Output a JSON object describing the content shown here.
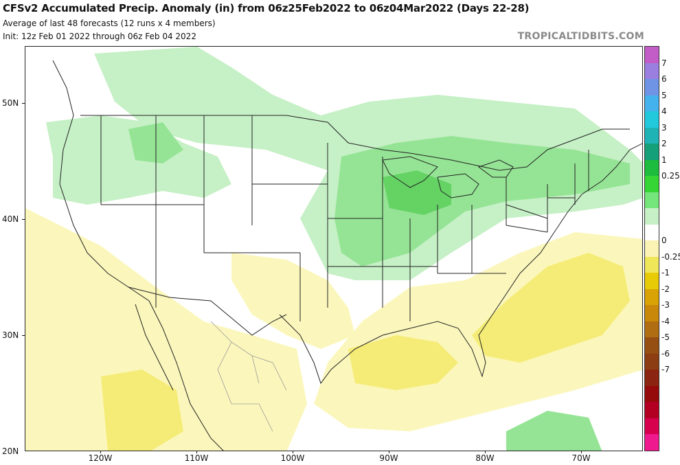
{
  "header": {
    "title": "CFSv2 Accumulated Precip. Anomaly (in) from 06z25Feb2022 to 06z04Mar2022 (Days 22-28)",
    "subtitle1": "Average of last 48 forecasts (12 runs x 4 members)",
    "subtitle2": "Init: 12z Feb 01 2022 through 06z Feb 04 2022",
    "credit": "TROPICALTIDBITS.COM"
  },
  "map": {
    "lat_labels": [
      "50N",
      "40N",
      "30N",
      "20N"
    ],
    "lon_labels": [
      "120W",
      "110W",
      "100W",
      "90W",
      "80W",
      "70W"
    ],
    "colors": {
      "wet_light": "#c6f0c6",
      "wet_mid": "#95e495",
      "wet_high": "#64d364",
      "dry_light": "#fbf7bc",
      "dry_mid": "#f5ec77",
      "land_line": "#222222",
      "mexico_state_line": "#999999"
    }
  },
  "colorbar": {
    "labels": [
      "7",
      "6",
      "5",
      "4",
      "3",
      "2",
      "1",
      "0.25",
      "0",
      "-0.25",
      "-1",
      "-2",
      "-3",
      "-4",
      "-5",
      "-6",
      "-7"
    ],
    "colors": [
      "#c25dc8",
      "#9a7fe0",
      "#6f94e6",
      "#44b2ec",
      "#22c9dd",
      "#1fb3b6",
      "#15a07a",
      "#1dbb3e",
      "#35d535",
      "#74e57a",
      "#c7f0c7",
      "#ffffff",
      "#fbf3b3",
      "#f0e659",
      "#e6cb06",
      "#d9a306",
      "#c9880a",
      "#b06d12",
      "#964f12",
      "#8d3d12",
      "#8b2410",
      "#950a0a",
      "#b30022",
      "#d6004f",
      "#ef1a8d"
    ]
  }
}
